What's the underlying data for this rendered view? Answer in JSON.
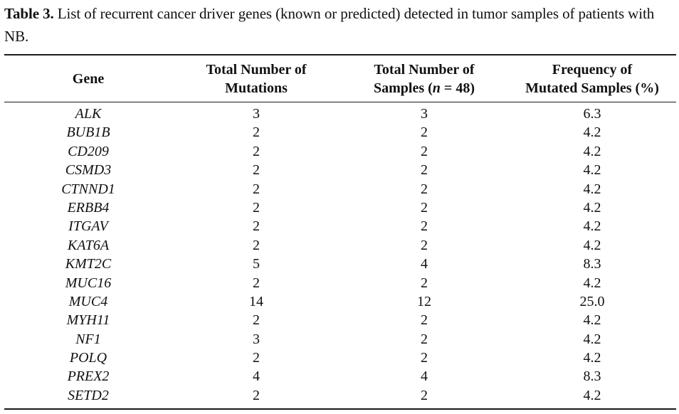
{
  "caption": {
    "label": "Table 3.",
    "text": "List of recurrent cancer driver genes (known or predicted) detected in tumor samples of patients with NB."
  },
  "table": {
    "headers": {
      "gene": "Gene",
      "mutations_line1": "Total Number of",
      "mutations_line2": "Mutations",
      "samples_line1": "Total Number of",
      "samples_line2_pre": "Samples (",
      "samples_line2_n": "n",
      "samples_line2_post": " = 48)",
      "frequency_line1": "Frequency of",
      "frequency_line2": "Mutated Samples (%)"
    },
    "rows": [
      {
        "gene": "ALK",
        "mutations": "3",
        "samples": "3",
        "frequency": "6.3"
      },
      {
        "gene": "BUB1B",
        "mutations": "2",
        "samples": "2",
        "frequency": "4.2"
      },
      {
        "gene": "CD209",
        "mutations": "2",
        "samples": "2",
        "frequency": "4.2"
      },
      {
        "gene": "CSMD3",
        "mutations": "2",
        "samples": "2",
        "frequency": "4.2"
      },
      {
        "gene": "CTNND1",
        "mutations": "2",
        "samples": "2",
        "frequency": "4.2"
      },
      {
        "gene": "ERBB4",
        "mutations": "2",
        "samples": "2",
        "frequency": "4.2"
      },
      {
        "gene": "ITGAV",
        "mutations": "2",
        "samples": "2",
        "frequency": "4.2"
      },
      {
        "gene": "KAT6A",
        "mutations": "2",
        "samples": "2",
        "frequency": "4.2"
      },
      {
        "gene": "KMT2C",
        "mutations": "5",
        "samples": "4",
        "frequency": "8.3"
      },
      {
        "gene": "MUC16",
        "mutations": "2",
        "samples": "2",
        "frequency": "4.2"
      },
      {
        "gene": "MUC4",
        "mutations": "14",
        "samples": "12",
        "frequency": "25.0"
      },
      {
        "gene": "MYH11",
        "mutations": "2",
        "samples": "2",
        "frequency": "4.2"
      },
      {
        "gene": "NF1",
        "mutations": "3",
        "samples": "2",
        "frequency": "4.2"
      },
      {
        "gene": "POLQ",
        "mutations": "2",
        "samples": "2",
        "frequency": "4.2"
      },
      {
        "gene": "PREX2",
        "mutations": "4",
        "samples": "4",
        "frequency": "8.3"
      },
      {
        "gene": "SETD2",
        "mutations": "2",
        "samples": "2",
        "frequency": "4.2"
      }
    ]
  }
}
